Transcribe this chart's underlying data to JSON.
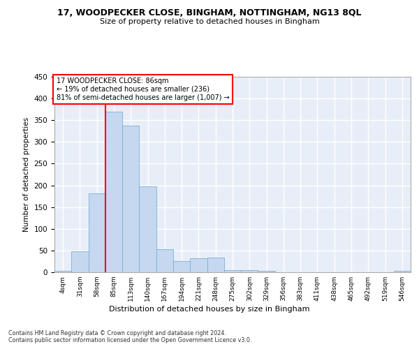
{
  "title": "17, WOODPECKER CLOSE, BINGHAM, NOTTINGHAM, NG13 8QL",
  "subtitle": "Size of property relative to detached houses in Bingham",
  "xlabel": "Distribution of detached houses by size in Bingham",
  "ylabel": "Number of detached properties",
  "bar_color": "#c5d8f0",
  "bar_edge_color": "#7aafd4",
  "background_color": "#e8eef8",
  "grid_color": "#ffffff",
  "bin_labels": [
    "4sqm",
    "31sqm",
    "58sqm",
    "85sqm",
    "113sqm",
    "140sqm",
    "167sqm",
    "194sqm",
    "221sqm",
    "248sqm",
    "275sqm",
    "302sqm",
    "329sqm",
    "356sqm",
    "383sqm",
    "411sqm",
    "438sqm",
    "465sqm",
    "492sqm",
    "519sqm",
    "546sqm"
  ],
  "bar_values": [
    3,
    48,
    182,
    370,
    338,
    197,
    53,
    26,
    32,
    33,
    5,
    5,
    3,
    0,
    0,
    0,
    0,
    0,
    0,
    0,
    3
  ],
  "ylim": [
    0,
    450
  ],
  "yticks": [
    0,
    50,
    100,
    150,
    200,
    250,
    300,
    350,
    400,
    450
  ],
  "red_line_x": 3,
  "annotation_title": "17 WOODPECKER CLOSE: 86sqm",
  "annotation_line1": "← 19% of detached houses are smaller (236)",
  "annotation_line2": "81% of semi-detached houses are larger (1,007) →",
  "footnote1": "Contains HM Land Registry data © Crown copyright and database right 2024.",
  "footnote2": "Contains public sector information licensed under the Open Government Licence v3.0."
}
